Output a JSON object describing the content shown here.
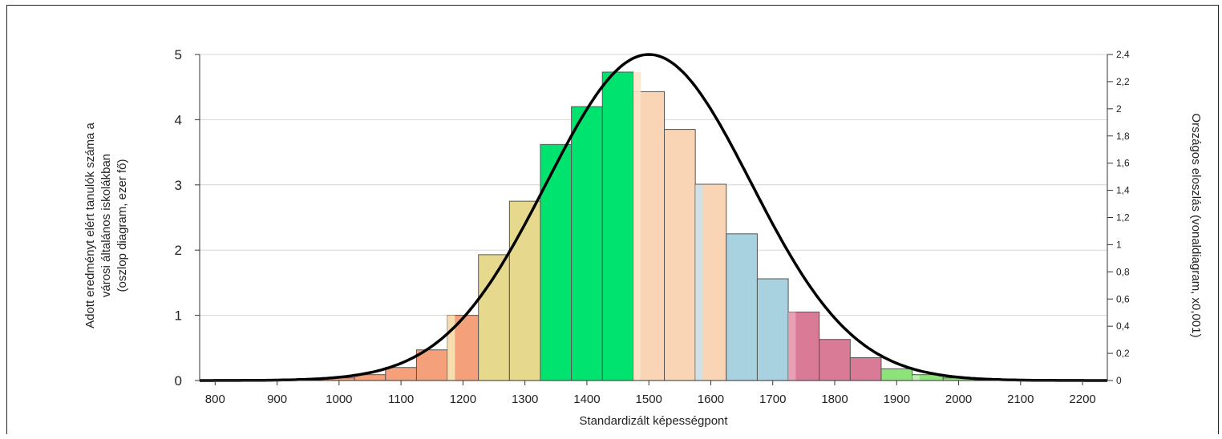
{
  "chart_data": {
    "type": "bar",
    "title": "",
    "xlabel": "Standardizált képességpont",
    "ylabel_left_lines": [
      "Adott eredményt elért tanulók száma a",
      "városi általános iskolákban",
      "(oszlop diagram, ezer fő)"
    ],
    "ylabel_right": "Országos eloszlás (vonaldiagram, x0,001)",
    "xlim": [
      775,
      2240
    ],
    "ylim_left": [
      0,
      5
    ],
    "ylim_right": [
      0,
      2.4
    ],
    "x_ticks": [
      800,
      900,
      1000,
      1100,
      1200,
      1300,
      1400,
      1500,
      1600,
      1700,
      1800,
      1900,
      2000,
      2100,
      2200
    ],
    "y_left_ticks": [
      "0",
      "1",
      "2",
      "3",
      "4",
      "5"
    ],
    "y_right_ticks": [
      "0",
      "0,2",
      "0,4",
      "0,6",
      "0,8",
      "1",
      "1,2",
      "1,4",
      "1,6",
      "1,8",
      "2",
      "2,2",
      "2,4"
    ],
    "y_right_tick_values": [
      0,
      0.2,
      0.4,
      0.6,
      0.8,
      1.0,
      1.2,
      1.4,
      1.6,
      1.8,
      2.0,
      2.2,
      2.4
    ],
    "grid": "horizontal",
    "bar_width": 50,
    "bars": [
      {
        "x0": 775,
        "value": 0.01,
        "color": "#f4a07a"
      },
      {
        "x0": 825,
        "value": 0.01,
        "color": "#f4a07a"
      },
      {
        "x0": 875,
        "value": 0.01,
        "color": "#f4a07a"
      },
      {
        "x0": 925,
        "value": 0.02,
        "color": "#f4a07a"
      },
      {
        "x0": 975,
        "value": 0.04,
        "color": "#f4a07a"
      },
      {
        "x0": 1025,
        "value": 0.09,
        "color": "#f4a07a"
      },
      {
        "x0": 1075,
        "value": 0.2,
        "color": "#f4a07a"
      },
      {
        "x0": 1125,
        "value": 0.47,
        "color": "#f4a07a"
      },
      {
        "x0": 1175,
        "value": 1.0,
        "color": "#f4a07a"
      },
      {
        "x0": 1225,
        "value": 1.93,
        "color": "#e6d98e"
      },
      {
        "x0": 1275,
        "value": 2.75,
        "color": "#e6d98e"
      },
      {
        "x0": 1325,
        "value": 3.62,
        "color": "#00e36f"
      },
      {
        "x0": 1375,
        "value": 4.2,
        "color": "#00e36f"
      },
      {
        "x0": 1425,
        "value": 4.73,
        "color": "#00e36f"
      },
      {
        "x0": 1475,
        "value": 4.43,
        "color": "#f9d5b5"
      },
      {
        "x0": 1525,
        "value": 3.85,
        "color": "#f9d5b5"
      },
      {
        "x0": 1575,
        "value": 3.01,
        "color": "#f9d5b5"
      },
      {
        "x0": 1625,
        "value": 2.25,
        "color": "#a9d2e0"
      },
      {
        "x0": 1675,
        "value": 1.56,
        "color": "#a9d2e0"
      },
      {
        "x0": 1725,
        "value": 1.05,
        "color": "#d97b97"
      },
      {
        "x0": 1775,
        "value": 0.63,
        "color": "#d97b97"
      },
      {
        "x0": 1825,
        "value": 0.35,
        "color": "#d97b97"
      },
      {
        "x0": 1875,
        "value": 0.18,
        "color": "#8ee27a"
      },
      {
        "x0": 1925,
        "value": 0.09,
        "color": "#8ee27a"
      },
      {
        "x0": 1975,
        "value": 0.04,
        "color": "#8ee27a"
      },
      {
        "x0": 2025,
        "value": 0.015,
        "color": "#8ee27a"
      },
      {
        "x0": 2075,
        "value": 0.005,
        "color": "#8ee27a"
      },
      {
        "x0": 2125,
        "value": 0.003,
        "color": "#8ee27a"
      },
      {
        "x0": 2175,
        "value": 0.002,
        "color": "#8ee27a"
      }
    ],
    "light_overlays": [
      {
        "x0": 1175,
        "value": 1.0,
        "color": "#f8e8b8"
      },
      {
        "x0": 1475,
        "value": 4.73,
        "color": "#fbe3c8"
      },
      {
        "x0": 1575,
        "value": 3.0,
        "color": "#c8e3ee"
      },
      {
        "x0": 1725,
        "value": 1.05,
        "color": "#e9a8b8"
      },
      {
        "x0": 1925,
        "value": 0.08,
        "color": "#c8f0c0"
      }
    ],
    "line_series": {
      "type": "normal_curve",
      "axis": "right",
      "mean": 1500,
      "sd": 165,
      "peak": 2.4,
      "x_range": [
        775,
        2240
      ],
      "color": "#000000"
    }
  }
}
